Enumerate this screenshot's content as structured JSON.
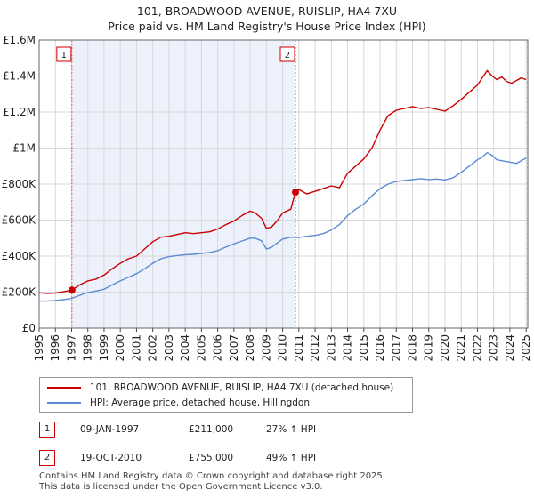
{
  "chart_data": {
    "type": "line",
    "title": "101, BROADWOOD AVENUE, RUISLIP, HA4 7XU",
    "subtitle": "Price paid vs. HM Land Registry's House Price Index (HPI)",
    "xlim": [
      1995,
      2025.1
    ],
    "ylim": [
      0,
      1600000
    ],
    "y_ticks": [
      {
        "value": 0,
        "label": "£0"
      },
      {
        "value": 200000,
        "label": "£200K"
      },
      {
        "value": 400000,
        "label": "£400K"
      },
      {
        "value": 600000,
        "label": "£600K"
      },
      {
        "value": 800000,
        "label": "£800K"
      },
      {
        "value": 1000000,
        "label": "£1M"
      },
      {
        "value": 1200000,
        "label": "£1.2M"
      },
      {
        "value": 1400000,
        "label": "£1.4M"
      },
      {
        "value": 1600000,
        "label": "£1.6M"
      }
    ],
    "x_ticks": [
      "1995",
      "1996",
      "1997",
      "1998",
      "1999",
      "2000",
      "2001",
      "2002",
      "2003",
      "2004",
      "2005",
      "2006",
      "2007",
      "2008",
      "2009",
      "2010",
      "2011",
      "2012",
      "2013",
      "2014",
      "2015",
      "2016",
      "2017",
      "2018",
      "2019",
      "2020",
      "2021",
      "2022",
      "2023",
      "2024",
      "2025"
    ],
    "grid": true,
    "series": [
      {
        "name": "101, BROADWOOD AVENUE, RUISLIP, HA4 7XU (detached house)",
        "color": "#cc0000",
        "x": [
          1995,
          1995.5,
          1996,
          1996.5,
          1997.02,
          1997.5,
          1998,
          1998.5,
          1999,
          1999.5,
          2000,
          2000.5,
          2001,
          2001.5,
          2002,
          2002.5,
          2003,
          2003.5,
          2004,
          2004.5,
          2005,
          2005.5,
          2006,
          2006.5,
          2007,
          2007.5,
          2008,
          2008.3,
          2008.7,
          2009,
          2009.3,
          2009.7,
          2010,
          2010.5,
          2010.79,
          2011,
          2011.5,
          2012,
          2012.5,
          2013,
          2013.5,
          2014,
          2014.5,
          2015,
          2015.5,
          2016,
          2016.5,
          2017,
          2017.5,
          2018,
          2018.5,
          2019,
          2019.5,
          2020,
          2020.5,
          2021,
          2021.5,
          2022,
          2022.3,
          2022.6,
          2022.9,
          2023.2,
          2023.5,
          2023.8,
          2024.1,
          2024.4,
          2024.7,
          2025
        ],
        "values": [
          196000,
          193000,
          195000,
          202000,
          211000,
          240000,
          262000,
          272000,
          295000,
          330000,
          360000,
          385000,
          400000,
          440000,
          480000,
          505000,
          510000,
          520000,
          530000,
          525000,
          530000,
          535000,
          550000,
          575000,
          595000,
          625000,
          650000,
          640000,
          610000,
          555000,
          560000,
          600000,
          640000,
          660000,
          755000,
          770000,
          745000,
          760000,
          775000,
          790000,
          780000,
          860000,
          900000,
          940000,
          1000000,
          1100000,
          1180000,
          1210000,
          1220000,
          1230000,
          1220000,
          1225000,
          1215000,
          1205000,
          1235000,
          1270000,
          1310000,
          1350000,
          1390000,
          1430000,
          1400000,
          1380000,
          1395000,
          1370000,
          1360000,
          1375000,
          1390000,
          1380000
        ]
      },
      {
        "name": "HPI: Average price, detached house, Hillingdon",
        "color": "#5b8bd1",
        "x": [
          1995,
          1995.5,
          1996,
          1996.5,
          1997,
          1997.5,
          1998,
          1998.5,
          1999,
          1999.5,
          2000,
          2000.5,
          2001,
          2001.5,
          2002,
          2002.5,
          2003,
          2003.5,
          2004,
          2004.5,
          2005,
          2005.5,
          2006,
          2006.5,
          2007,
          2007.5,
          2008,
          2008.3,
          2008.7,
          2009,
          2009.3,
          2009.7,
          2010,
          2010.5,
          2011,
          2011.5,
          2012,
          2012.5,
          2013,
          2013.5,
          2014,
          2014.5,
          2015,
          2015.5,
          2016,
          2016.5,
          2017,
          2017.5,
          2018,
          2018.5,
          2019,
          2019.5,
          2020,
          2020.5,
          2021,
          2021.5,
          2022,
          2022.3,
          2022.6,
          2022.9,
          2023.2,
          2023.5,
          2023.8,
          2024.1,
          2024.4,
          2024.7,
          2025
        ],
        "values": [
          150000,
          150000,
          153000,
          158000,
          165000,
          182000,
          198000,
          206000,
          216000,
          240000,
          262000,
          282000,
          302000,
          330000,
          360000,
          385000,
          397000,
          403000,
          408000,
          410000,
          415000,
          420000,
          430000,
          450000,
          468000,
          484000,
          500000,
          500000,
          485000,
          440000,
          448000,
          475000,
          495000,
          505000,
          503000,
          510000,
          515000,
          525000,
          545000,
          575000,
          625000,
          660000,
          690000,
          735000,
          775000,
          800000,
          815000,
          820000,
          825000,
          830000,
          825000,
          828000,
          823000,
          835000,
          865000,
          900000,
          935000,
          950000,
          975000,
          960000,
          935000,
          930000,
          925000,
          920000,
          915000,
          930000,
          945000
        ]
      }
    ],
    "sales": [
      {
        "label": "1",
        "x": 1997.02,
        "value": 211000
      },
      {
        "label": "2",
        "x": 2010.79,
        "value": 755000
      }
    ],
    "shaded_range": [
      1997.02,
      2010.79
    ]
  },
  "legend": {
    "property_label": "101, BROADWOOD AVENUE, RUISLIP, HA4 7XU (detached house)",
    "hpi_label": "HPI: Average price, detached house, Hillingdon"
  },
  "sales_table": [
    {
      "num": "1",
      "date": "09-JAN-1997",
      "price": "£211,000",
      "hpi": "27% ↑ HPI"
    },
    {
      "num": "2",
      "date": "19-OCT-2010",
      "price": "£755,000",
      "hpi": "49% ↑ HPI"
    }
  ],
  "footer": {
    "line1": "Contains HM Land Registry data © Crown copyright and database right 2025.",
    "line2": "This data is licensed under the Open Government Licence v3.0."
  }
}
